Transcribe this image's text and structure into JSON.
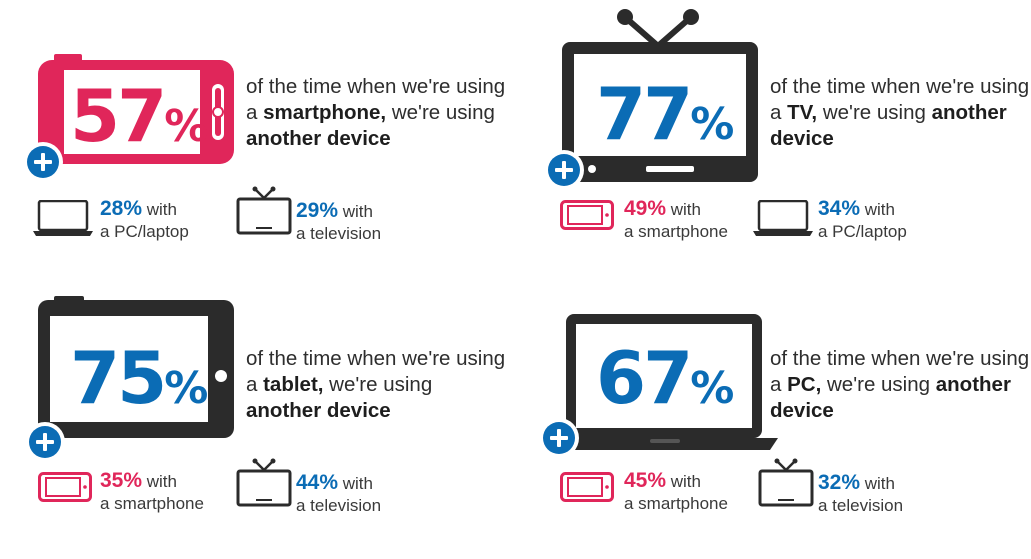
{
  "colors": {
    "pink": "#e0265a",
    "blue": "#0b6cb5",
    "dark": "#2b2b2b"
  },
  "panels": [
    {
      "device": "smartphone-icon",
      "value": "57",
      "percent_sign": "%",
      "text_before": "of the time when we're using a ",
      "device_word": "smartphone,",
      "text_mid": " we're using ",
      "text_bold_end": "another device",
      "stats": [
        {
          "icon": "laptop-icon",
          "value": "28%",
          "word": " with",
          "line2": "a PC/laptop"
        },
        {
          "icon": "tv-icon",
          "value": "29%",
          "word": " with",
          "line2": "a television"
        }
      ]
    },
    {
      "device": "tv-icon",
      "value": "77",
      "percent_sign": "%",
      "text_before": "of the time when we're using a ",
      "device_word": "TV,",
      "text_mid": " we're using ",
      "text_bold_end": "another device",
      "stats": [
        {
          "icon": "smartphone-icon",
          "value": "49%",
          "word": " with",
          "line2": "a smartphone"
        },
        {
          "icon": "laptop-icon",
          "value": "34%",
          "word": " with",
          "line2": "a PC/laptop"
        }
      ]
    },
    {
      "device": "tablet-icon",
      "value": "75",
      "percent_sign": "%",
      "text_before": "of the time when we're using a ",
      "device_word": "tablet,",
      "text_mid": " we're using ",
      "text_bold_end": "another device",
      "stats": [
        {
          "icon": "smartphone-icon",
          "value": "35%",
          "word": " with",
          "line2": "a smartphone"
        },
        {
          "icon": "tv-icon",
          "value": "44%",
          "word": " with",
          "line2": "a television"
        }
      ]
    },
    {
      "device": "laptop-icon",
      "value": "67",
      "percent_sign": "%",
      "text_before": "of the time when we're using a ",
      "device_word": "PC,",
      "text_mid": " we're using ",
      "text_bold_end": "another device",
      "stats": [
        {
          "icon": "smartphone-icon",
          "value": "45%",
          "word": " with",
          "line2": "a smartphone"
        },
        {
          "icon": "tv-icon",
          "value": "32%",
          "word": " with",
          "line2": "a television"
        }
      ]
    }
  ]
}
